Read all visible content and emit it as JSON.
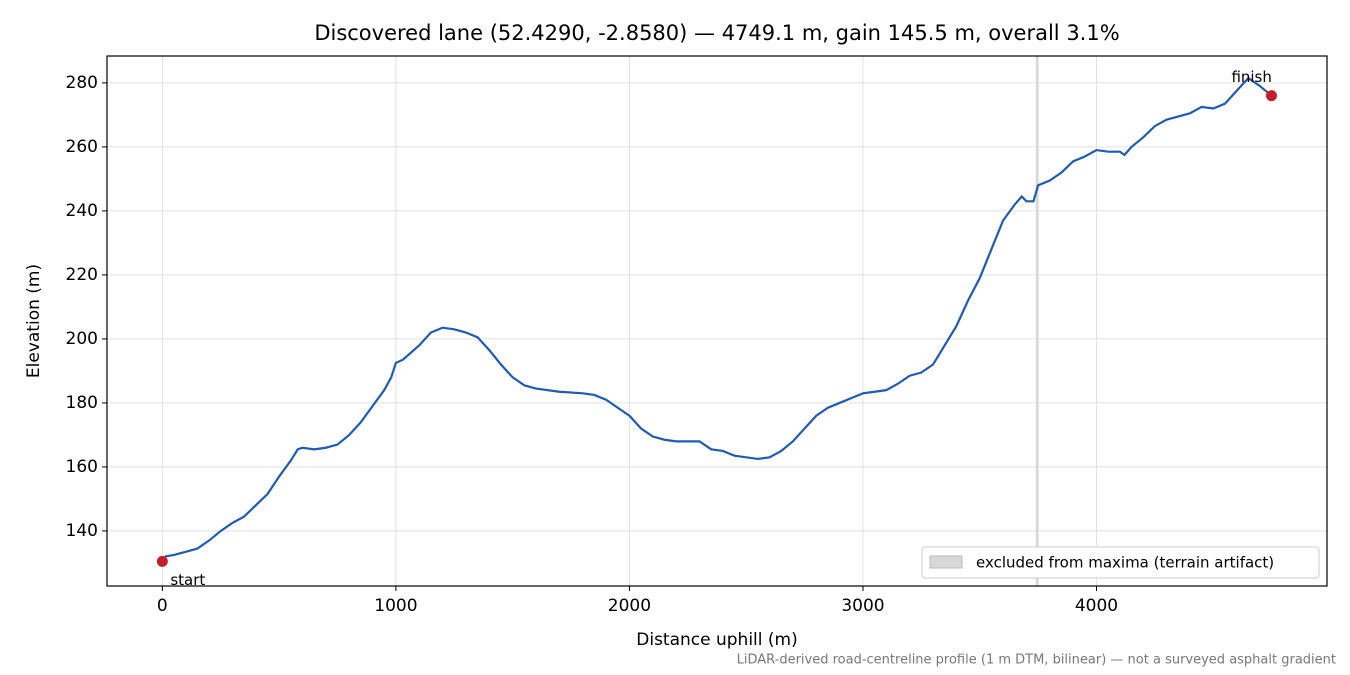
{
  "chart_data": {
    "type": "line",
    "title": "Discovered lane (52.4290, -2.8580) — 4749.1 m, gain 145.5 m, overall 3.1%",
    "x_label": "Distance uphill (m)",
    "y_label": "Elevation (m)",
    "footnote": "LiDAR-derived road-centreline profile (1 m DTM, bilinear) — not a surveyed asphalt gradient",
    "x": [
      10,
      50,
      100,
      150,
      200,
      250,
      300,
      350,
      400,
      450,
      500,
      550,
      580,
      600,
      650,
      700,
      750,
      800,
      850,
      900,
      950,
      980,
      1000,
      1030,
      1100,
      1150,
      1200,
      1250,
      1300,
      1350,
      1400,
      1450,
      1500,
      1550,
      1600,
      1700,
      1800,
      1850,
      1900,
      1950,
      2000,
      2050,
      2100,
      2150,
      2200,
      2250,
      2300,
      2350,
      2400,
      2450,
      2500,
      2550,
      2600,
      2650,
      2700,
      2750,
      2800,
      2850,
      2900,
      2950,
      3000,
      3050,
      3100,
      3150,
      3200,
      3250,
      3300,
      3350,
      3400,
      3450,
      3500,
      3550,
      3600,
      3650,
      3680,
      3700,
      3730,
      3750,
      3800,
      3850,
      3900,
      3950,
      4000,
      4050,
      4100,
      4120,
      4150,
      4200,
      4250,
      4300,
      4400,
      4450,
      4500,
      4550,
      4600,
      4650,
      4700,
      4749
    ],
    "series": [
      {
        "color": "#1f5bb0",
        "values": [
          132,
          132.5,
          133.5,
          134.5,
          137,
          140,
          142.5,
          144.5,
          148,
          151.5,
          157,
          162,
          165.5,
          166,
          165.5,
          166,
          167,
          170,
          174,
          179,
          184,
          188,
          192.5,
          193.5,
          198,
          202,
          203.5,
          203,
          202,
          200.5,
          196.5,
          192,
          188,
          185.5,
          184.5,
          183.5,
          183,
          182.5,
          181,
          178.5,
          176,
          172,
          169.5,
          168.5,
          168,
          168,
          168,
          165.5,
          165,
          163.5,
          163,
          162.5,
          163,
          165,
          168,
          172,
          176,
          178.5,
          180,
          181.5,
          183,
          183.5,
          184,
          186,
          188.5,
          189.5,
          192,
          198,
          204,
          212,
          219,
          228,
          237,
          242,
          244.5,
          243,
          243,
          248,
          249.5,
          252,
          255.5,
          257,
          259,
          258.5,
          258.5,
          257.5,
          260,
          263,
          266.5,
          268.5,
          270.5,
          272.5,
          272,
          273.5,
          277.5,
          281.5,
          279,
          276
        ]
      }
    ],
    "markers": {
      "color": "#c41e2a",
      "points": [
        {
          "label": "start",
          "x": 0,
          "y": 130.5
        },
        {
          "label": "finish",
          "x": 4749.1,
          "y": 276
        }
      ]
    },
    "excluded": {
      "label": "excluded from maxima (terrain artifact)",
      "x": [
        3740,
        3752
      ],
      "color": "#d8d8d8"
    },
    "xlim": [
      -237,
      4987
    ],
    "ylim": [
      122.8,
      288.4
    ],
    "xticks": [
      0,
      1000,
      2000,
      3000,
      4000
    ],
    "yticks": [
      140,
      160,
      180,
      200,
      220,
      240,
      260,
      280
    ],
    "grid": true,
    "legend": "lower right"
  }
}
